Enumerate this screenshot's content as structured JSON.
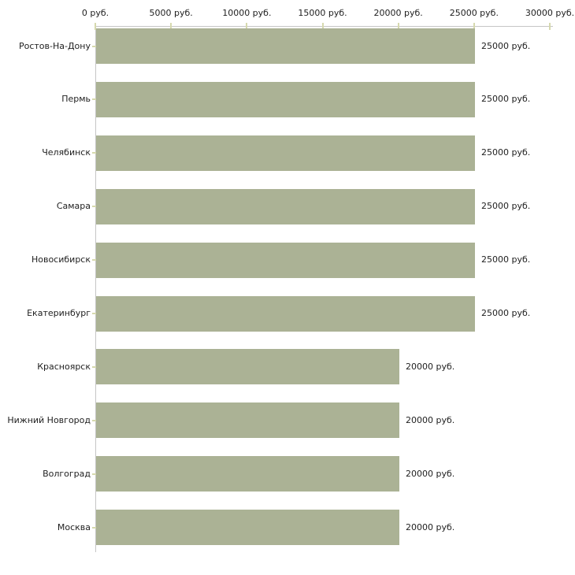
{
  "chart_data": {
    "type": "bar",
    "orientation": "horizontal",
    "title": "",
    "xlabel": "",
    "ylabel": "",
    "xlim": [
      0,
      30000
    ],
    "grid": false,
    "legend": "none",
    "categories": [
      "Ростов-На-Дону",
      "Пермь",
      "Челябинск",
      "Самара",
      "Новосибирск",
      "Екатеринбург",
      "Красноярск",
      "Нижний Новгород",
      "Волгоград",
      "Москва"
    ],
    "values": [
      25000,
      25000,
      25000,
      25000,
      25000,
      25000,
      20000,
      20000,
      20000,
      20000
    ],
    "value_labels": [
      "25000 руб.",
      "25000 руб.",
      "25000 руб.",
      "25000 руб.",
      "25000 руб.",
      "25000 руб.",
      "20000 руб.",
      "20000 руб.",
      "20000 руб.",
      "20000 руб."
    ],
    "x_ticks": [
      {
        "value": 0,
        "label": "0 руб."
      },
      {
        "value": 5000,
        "label": "5000 руб."
      },
      {
        "value": 10000,
        "label": "10000 руб."
      },
      {
        "value": 15000,
        "label": "15000 руб."
      },
      {
        "value": 20000,
        "label": "20000 руб."
      },
      {
        "value": 25000,
        "label": "25000 руб."
      },
      {
        "value": 30000,
        "label": "30000 руб."
      }
    ],
    "colors": {
      "bar": "#abb295",
      "axis": "#c6c6c6",
      "tick": "#d6d9ae",
      "text": "#1e1e1e",
      "background": "#ffffff"
    }
  }
}
